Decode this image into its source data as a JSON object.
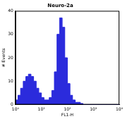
{
  "chart_data": {
    "type": "histogram",
    "title": "Neuro-2a",
    "x_label": "FL1-H",
    "y_label": "# Events",
    "bins": [
      1,
      1.26,
      1.58,
      2,
      2.51,
      3.16,
      3.98,
      5.01,
      6.31,
      7.94,
      10,
      12.6,
      15.8,
      20,
      25.1,
      31.6,
      39.8,
      50.1,
      63.1,
      79.4,
      100,
      126,
      158,
      200,
      251,
      316,
      398,
      501,
      631,
      794,
      1000,
      1260,
      1580,
      2000,
      2510,
      3160,
      3980,
      5010,
      6310,
      7940,
      10000
    ],
    "counts": [
      1,
      2,
      4,
      7,
      10,
      12,
      13,
      12,
      10,
      7,
      5,
      3,
      2,
      2,
      3,
      6,
      14,
      30,
      37,
      33,
      20,
      9,
      4,
      2,
      1,
      1,
      0.5,
      0,
      0,
      0,
      0,
      0,
      0,
      0,
      0,
      0,
      0,
      0,
      0,
      0
    ],
    "color": "#2b2bdc",
    "log": "x",
    "xlim": [
      1,
      10000
    ],
    "xticks": [
      {
        "value": 1,
        "label": "10⁰"
      },
      {
        "value": 10,
        "label": "10¹"
      },
      {
        "value": 100,
        "label": "10²"
      },
      {
        "value": 1000,
        "label": "10³"
      },
      {
        "value": 10000,
        "label": "10⁴"
      }
    ],
    "ylim": [
      0,
      40
    ],
    "yticks": [
      0,
      10,
      20,
      30,
      40
    ],
    "grid": false
  }
}
